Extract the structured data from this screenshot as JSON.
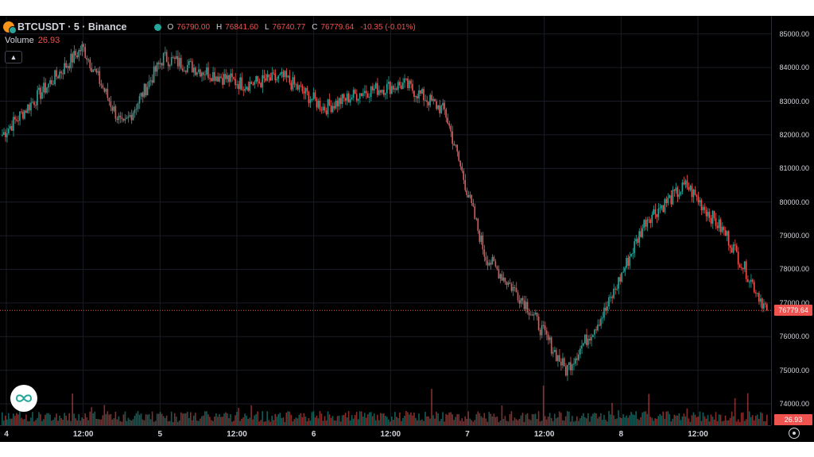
{
  "header": {
    "symbol": "BTCUSDT · 5 · Binance",
    "open_label": "O",
    "open": "76790.00",
    "high_label": "H",
    "high": "76841.60",
    "low_label": "L",
    "low": "76740.77",
    "close_label": "C",
    "close": "76779.64",
    "change": "-10.35 (-0.01%)"
  },
  "volume": {
    "label": "Volume",
    "value": "26.93",
    "tag": "26.93"
  },
  "collapse_icon": "chevron-up",
  "price_axis": {
    "ticks": [
      "85000.00",
      "84000.00",
      "83000.00",
      "82000.00",
      "81000.00",
      "80000.00",
      "79000.00",
      "78000.00",
      "77000.00",
      "76000.00",
      "75000.00",
      "74000.00"
    ],
    "last_price_tag": "76779.64"
  },
  "time_axis": {
    "ticks": [
      "4",
      "12:00",
      "5",
      "12:00",
      "6",
      "12:00",
      "7",
      "12:00",
      "8",
      "12:00"
    ]
  },
  "colors": {
    "up": "#26a69a",
    "down": "#ef5350",
    "background": "#000000",
    "text": "#d1d4dc"
  },
  "chart_data": {
    "type": "candlestick",
    "x": [
      "4",
      "12:00",
      "5",
      "12:00",
      "6",
      "12:00",
      "7",
      "12:00",
      "8",
      "12:00"
    ],
    "close_path": [
      [
        "4",
        82000
      ],
      [
        "4",
        83300
      ],
      [
        "12:00",
        84600
      ],
      [
        "12:00",
        82200
      ],
      [
        "5",
        84300
      ],
      [
        "5",
        83900
      ],
      [
        "12:00",
        83500
      ],
      [
        "12:00",
        83700
      ],
      [
        "6",
        82800
      ],
      [
        "6",
        83300
      ],
      [
        "12:00",
        83500
      ],
      [
        "12:00",
        82700
      ],
      [
        "7",
        78400
      ],
      [
        "7",
        77000
      ],
      [
        "12:00",
        75000
      ],
      [
        "12:00",
        76800
      ],
      [
        "8",
        79500
      ],
      [
        "8",
        80500
      ],
      [
        "12:00",
        79000
      ],
      [
        "12:00",
        76780
      ]
    ],
    "ylim": [
      73600,
      85300
    ],
    "last_price": 76779.64
  }
}
